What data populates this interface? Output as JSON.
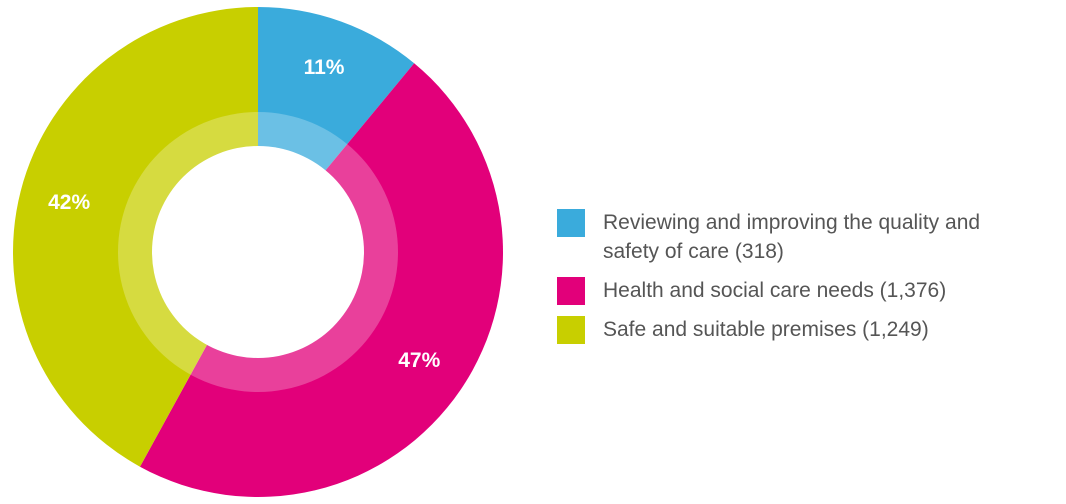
{
  "chart_data": {
    "type": "pie",
    "donut": true,
    "categories": [
      "Reviewing and improving the quality and safety of care (318)",
      "Health and social care needs (1,376)",
      "Safe and suitable premises (1,249)"
    ],
    "values": [
      11,
      47,
      42
    ],
    "value_labels": [
      "11%",
      "47%",
      "42%"
    ],
    "colors": [
      "#3aabdc",
      "#e2007a",
      "#c8cf00"
    ],
    "legend": "right"
  }
}
